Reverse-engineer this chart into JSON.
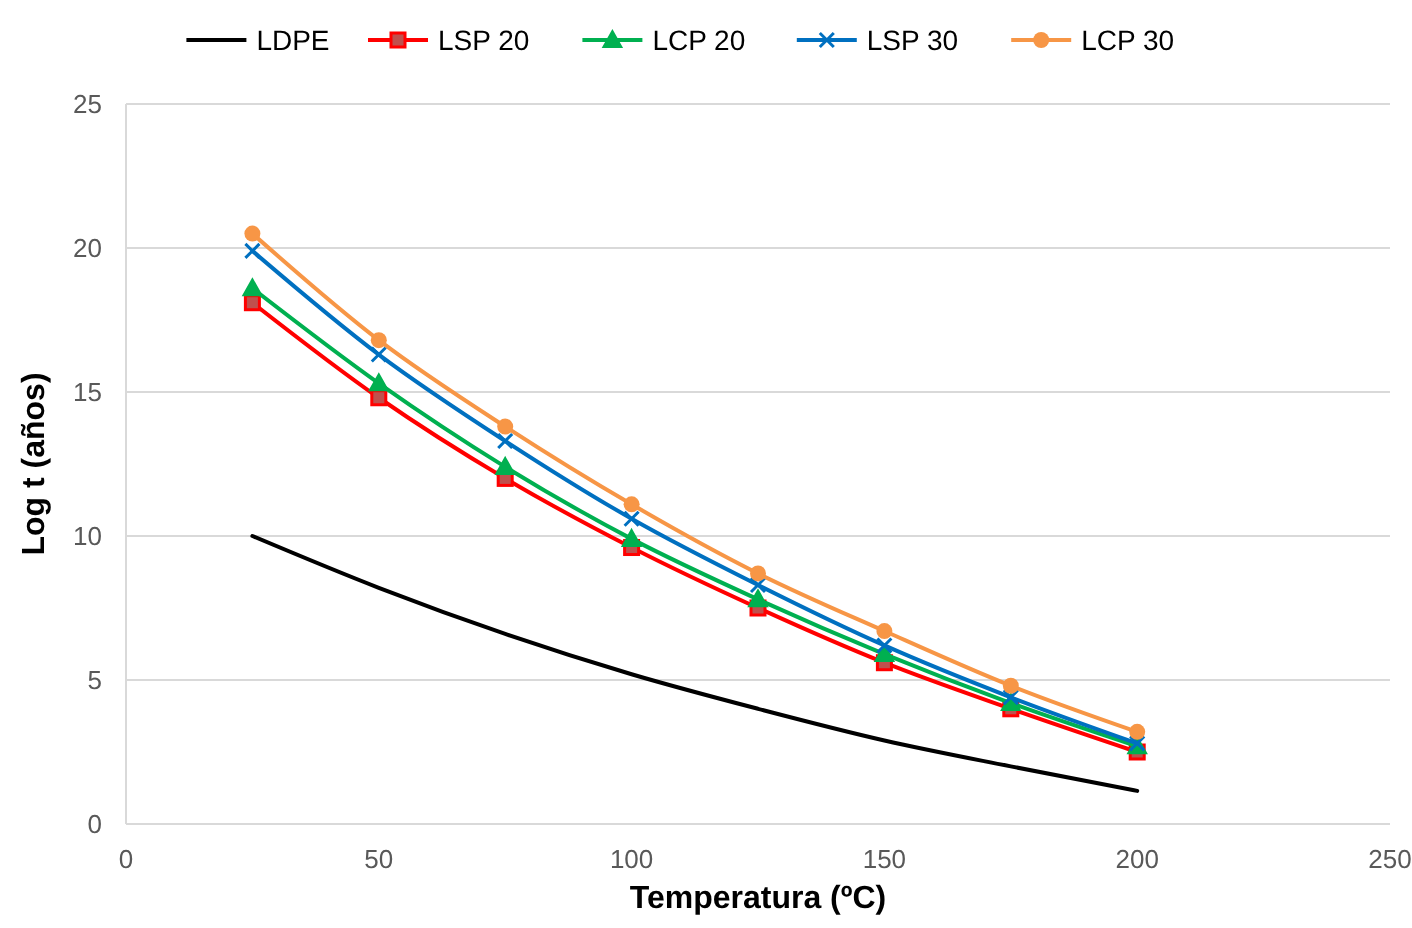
{
  "chart_data": {
    "type": "line",
    "xlabel": "Temperatura (ºC)",
    "ylabel": "Log t (años)",
    "x": [
      25,
      50,
      75,
      100,
      125,
      150,
      175,
      200
    ],
    "xlim": [
      0,
      250
    ],
    "xticks": [
      0,
      50,
      100,
      150,
      200,
      250
    ],
    "ylim": [
      0,
      25
    ],
    "yticks": [
      0,
      5,
      10,
      15,
      20,
      25
    ],
    "grid": "y",
    "legend": "top",
    "series": [
      {
        "name": "LDPE",
        "color": "#000000",
        "marker": "none",
        "values": [
          10.0,
          8.2,
          6.6,
          5.2,
          4.0,
          2.9,
          2.0,
          1.15
        ]
      },
      {
        "name": "LSP 20",
        "color": "#ff0000",
        "marker": "square",
        "values": [
          18.1,
          14.8,
          12.0,
          9.6,
          7.5,
          5.6,
          4.0,
          2.5
        ]
      },
      {
        "name": "LCP 20",
        "color": "#00b050",
        "marker": "triangle",
        "values": [
          18.6,
          15.3,
          12.4,
          9.9,
          7.8,
          5.9,
          4.2,
          2.7
        ]
      },
      {
        "name": "LSP 30",
        "color": "#0070c0",
        "marker": "cross",
        "values": [
          19.9,
          16.3,
          13.3,
          10.6,
          8.3,
          6.2,
          4.4,
          2.8
        ]
      },
      {
        "name": "LCP 30",
        "color": "#f79646",
        "marker": "circle",
        "values": [
          20.5,
          16.8,
          13.8,
          11.1,
          8.7,
          6.7,
          4.8,
          3.2
        ]
      }
    ]
  }
}
